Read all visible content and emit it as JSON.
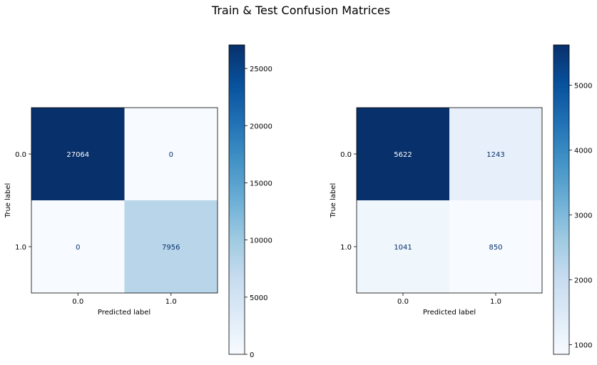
{
  "figure": {
    "suptitle": "Train & Test Confusion Matrices"
  },
  "chart_data": [
    {
      "type": "heatmap",
      "colormap": "Blues",
      "title": "",
      "xlabel": "Predicted label",
      "ylabel": "True label",
      "x_tick_labels": [
        "0.0",
        "1.0"
      ],
      "y_tick_labels": [
        "0.0",
        "1.0"
      ],
      "matrix": [
        [
          27064,
          0
        ],
        [
          0,
          7956
        ]
      ],
      "colorbar": {
        "min": 0,
        "max": 27064,
        "ticks": [
          0,
          5000,
          10000,
          15000,
          20000,
          25000
        ]
      }
    },
    {
      "type": "heatmap",
      "colormap": "Blues",
      "title": "",
      "xlabel": "Predicted label",
      "ylabel": "True label",
      "x_tick_labels": [
        "0.0",
        "1.0"
      ],
      "y_tick_labels": [
        "0.0",
        "1.0"
      ],
      "matrix": [
        [
          5622,
          1243
        ],
        [
          1041,
          850
        ]
      ],
      "colorbar": {
        "min": 850,
        "max": 5622,
        "ticks": [
          1000,
          2000,
          3000,
          4000,
          5000
        ]
      }
    }
  ]
}
